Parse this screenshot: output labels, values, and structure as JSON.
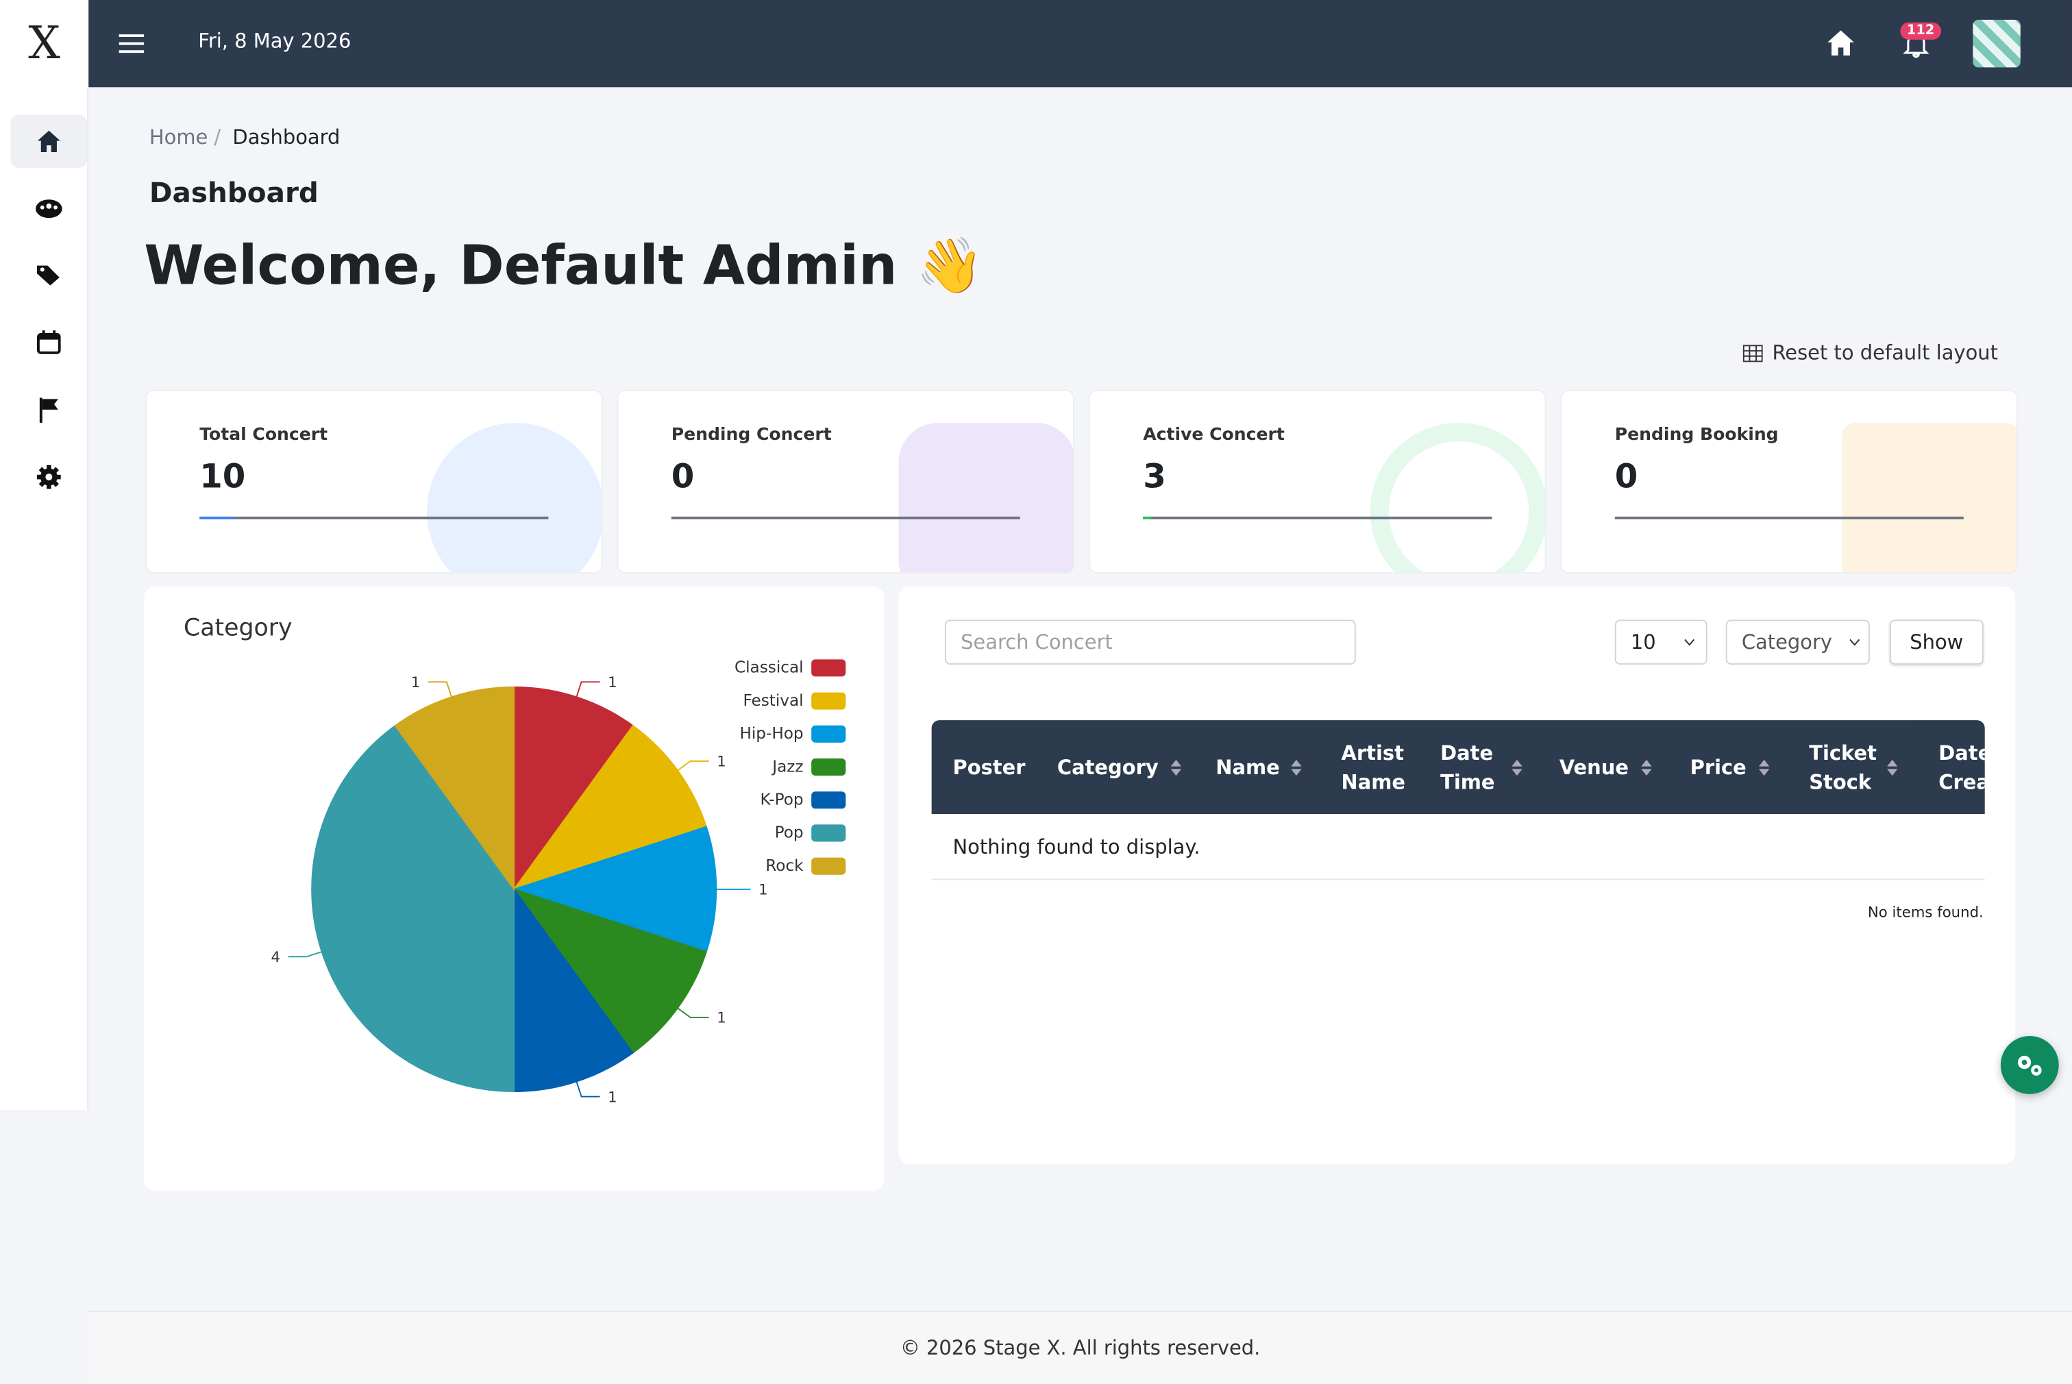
{
  "header": {
    "logo": "X",
    "date": "Fri, 8 May 2026",
    "notifications": "112"
  },
  "breadcrumb": [
    "Home",
    "Dashboard"
  ],
  "page_title": "Dashboard",
  "welcome": "Welcome, Default Admin 👋",
  "reset_layout": "Reset to default layout",
  "stats": [
    {
      "label": "Total Concert",
      "value": 10
    },
    {
      "label": "Pending Concert",
      "value": 0
    },
    {
      "label": "Active Concert",
      "value": 3
    },
    {
      "label": "Pending Booking",
      "value": 0
    }
  ],
  "chart_data": {
    "type": "pie",
    "title": "Category",
    "categories": [
      "Classical",
      "Festival",
      "Hip-Hop",
      "Jazz",
      "K-Pop",
      "Pop",
      "Rock"
    ],
    "values": [
      1,
      1,
      1,
      1,
      1,
      4,
      1
    ],
    "colors": [
      "#c22b35",
      "#e6b800",
      "#0099dd",
      "#2b8a1f",
      "#005fb0",
      "#359ca8",
      "#cfa81d"
    ],
    "legend": "top-right"
  },
  "table": {
    "search_placeholder": "Search Concert",
    "page_size": "10",
    "category_filter": "Category",
    "show_button": "Show",
    "columns": [
      "Poster",
      "Category",
      "Name",
      "Artist Name",
      "Date Time",
      "Venue",
      "Price",
      "Ticket Stock",
      "Date Created"
    ],
    "empty_message": "Nothing found to display.",
    "footer_note": "No items found."
  },
  "footer": "© 2026 Stage X. All rights reserved."
}
